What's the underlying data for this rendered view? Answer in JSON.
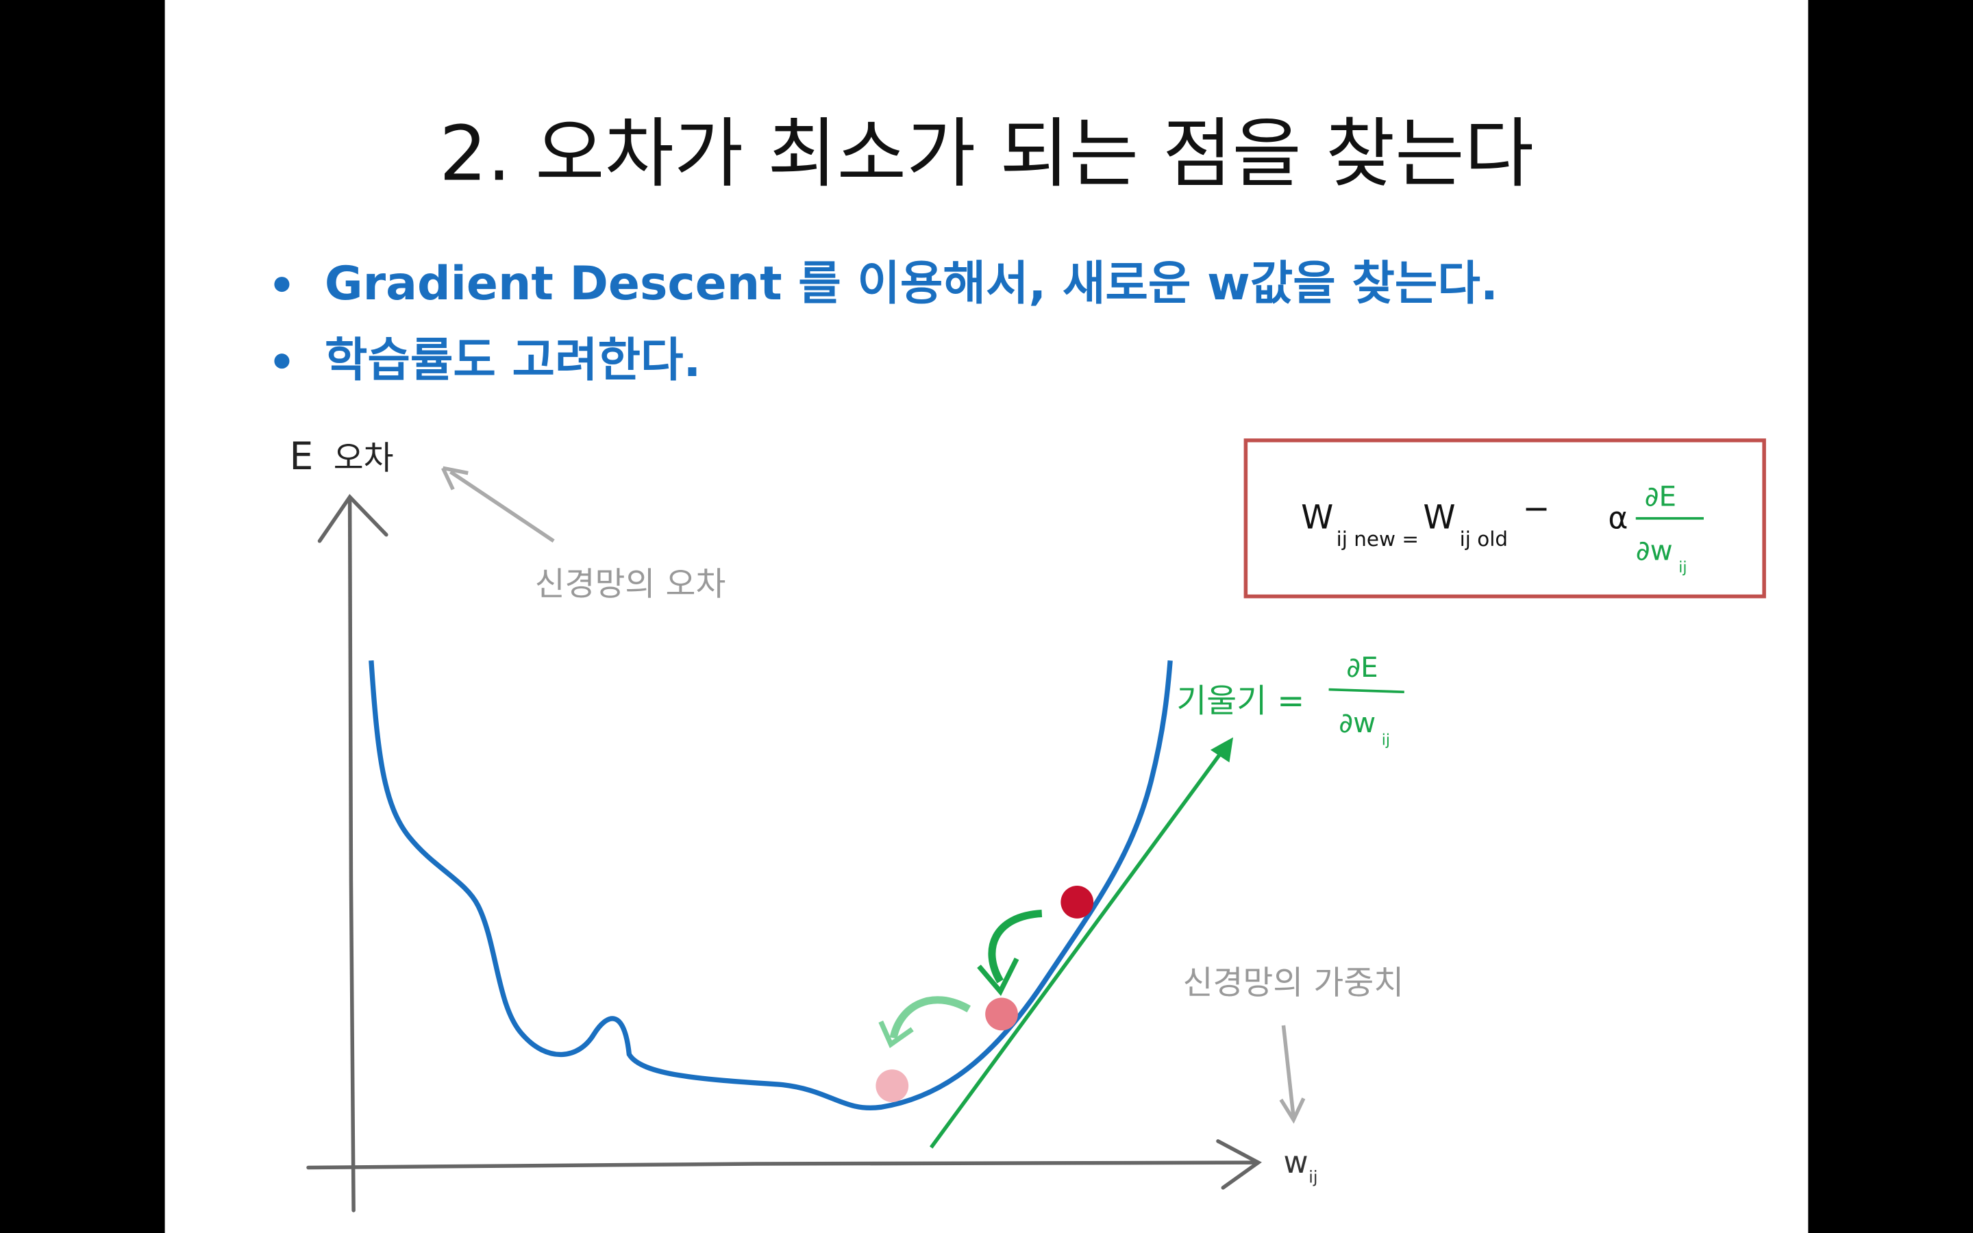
{
  "slide": {
    "title": "2. 오차가 최소가 되는 점을 찾는다",
    "bullets": [
      "Gradient Descent 를 이용해서, 새로운 w값을 찾는다.",
      "학습률도 고려한다."
    ],
    "diagram": {
      "y_axis_symbol": "E",
      "y_axis_label": "오차",
      "error_note": "신경망의 오차",
      "x_axis_symbol": "w",
      "x_axis_subscript": "ij",
      "weight_note": "신경망의 가중치",
      "slope_label": "기울기 =",
      "slope_numerator": "∂E",
      "slope_denominator": "∂w",
      "slope_subscript": "ij"
    },
    "formula": {
      "lhs": "W",
      "lhs_subscript": "ij new =",
      "rhs": "W",
      "rhs_subscript": "ij  old",
      "minus": "−",
      "alpha": "α",
      "numerator": "∂E",
      "denominator": "∂w",
      "denominator_subscript": "ij"
    }
  }
}
